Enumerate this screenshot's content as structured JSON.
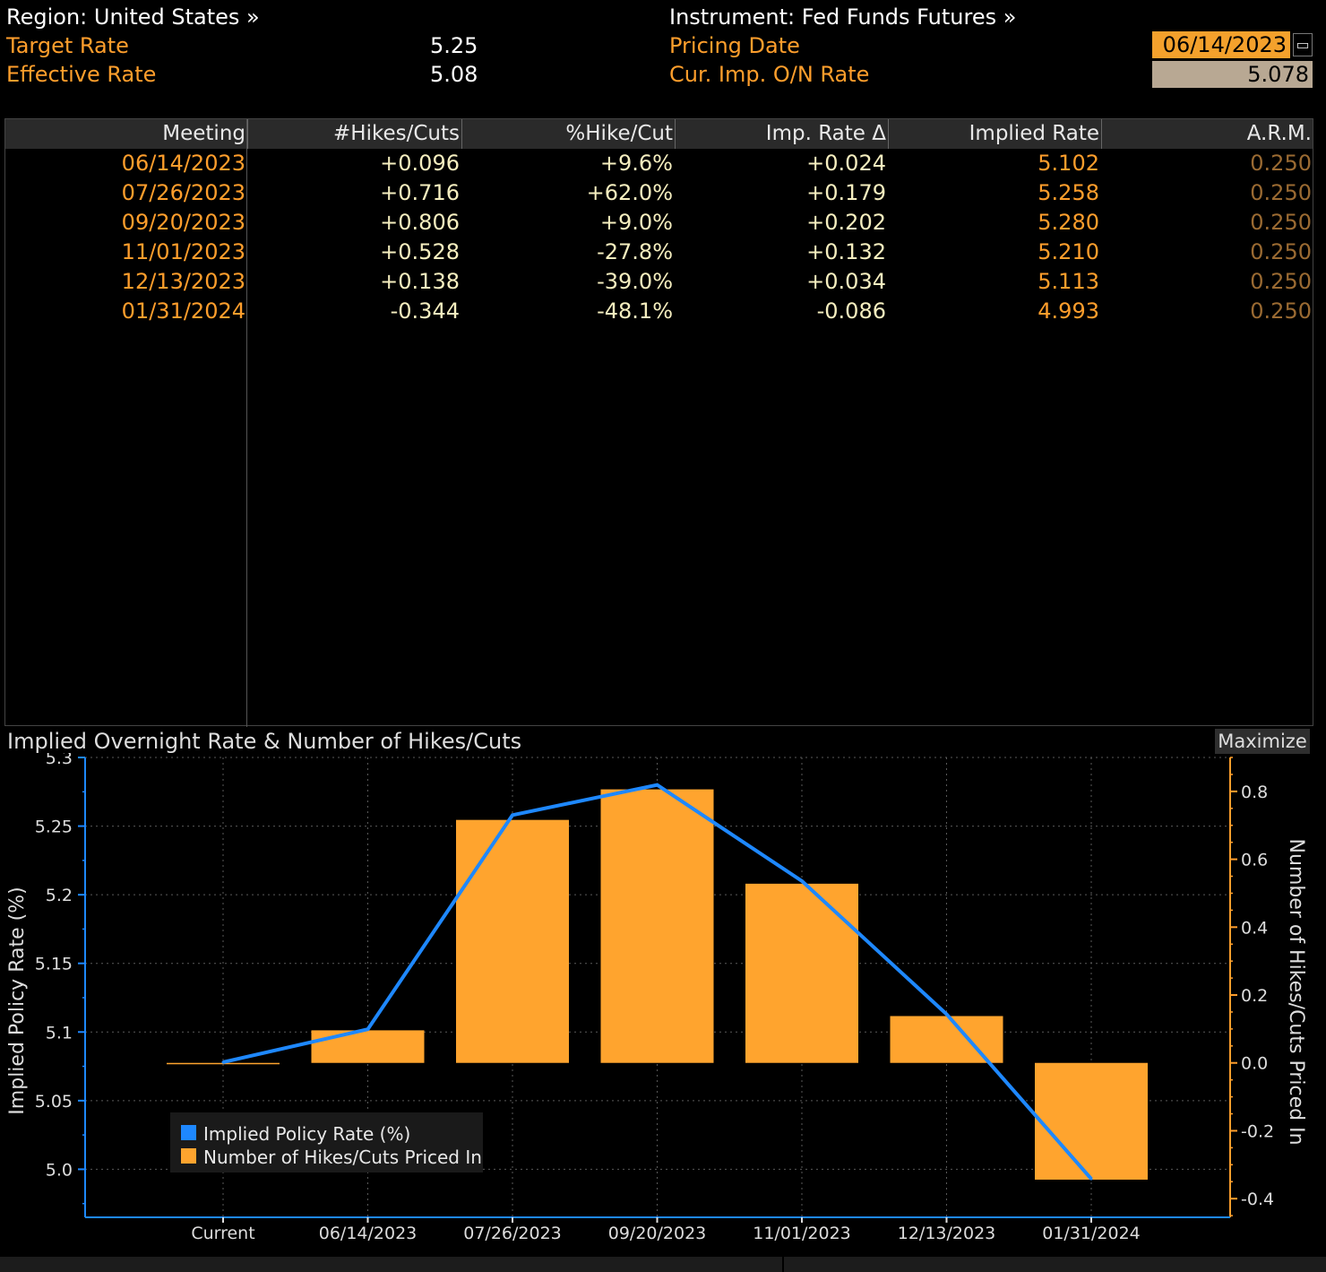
{
  "header": {
    "region_label": "Region: United States »",
    "instrument_label": "Instrument: Fed Funds Futures »",
    "target_rate_label": "Target Rate",
    "target_rate_value": "5.25",
    "effective_rate_label": "Effective Rate",
    "effective_rate_value": "5.08",
    "pricing_date_label": "Pricing Date",
    "pricing_date_value": "06/14/2023",
    "cur_imp_label": "Cur. Imp. O/N Rate",
    "cur_imp_value": "5.078"
  },
  "table": {
    "columns": [
      "Meeting",
      "#Hikes/Cuts",
      "%Hike/Cut",
      "Imp. Rate Δ",
      "Implied Rate",
      "A.R.M."
    ],
    "rows": [
      {
        "meeting": "06/14/2023",
        "hikes": "+0.096",
        "pct": "+9.6%",
        "delta": "+0.024",
        "implied": "5.102",
        "arm": "0.250"
      },
      {
        "meeting": "07/26/2023",
        "hikes": "+0.716",
        "pct": "+62.0%",
        "delta": "+0.179",
        "implied": "5.258",
        "arm": "0.250"
      },
      {
        "meeting": "09/20/2023",
        "hikes": "+0.806",
        "pct": "+9.0%",
        "delta": "+0.202",
        "implied": "5.280",
        "arm": "0.250"
      },
      {
        "meeting": "11/01/2023",
        "hikes": "+0.528",
        "pct": "-27.8%",
        "delta": "+0.132",
        "implied": "5.210",
        "arm": "0.250"
      },
      {
        "meeting": "12/13/2023",
        "hikes": "+0.138",
        "pct": "-39.0%",
        "delta": "+0.034",
        "implied": "5.113",
        "arm": "0.250"
      },
      {
        "meeting": "01/31/2024",
        "hikes": "-0.344",
        "pct": "-48.1%",
        "delta": "-0.086",
        "implied": "4.993",
        "arm": "0.250"
      }
    ]
  },
  "chart_title": "Implied Overnight Rate & Number of Hikes/Cuts",
  "maximize_label": "Maximize",
  "colors": {
    "line": "#1e88ff",
    "bar": "#ffa42e",
    "orange_text": "#ff9e2c"
  },
  "chart_data": {
    "type": "bar",
    "categories": [
      "Current",
      "06/14/2023",
      "07/26/2023",
      "09/20/2023",
      "11/01/2023",
      "12/13/2023",
      "01/31/2024"
    ],
    "series": [
      {
        "name": "Implied Policy Rate (%)",
        "type": "line",
        "axis": "left",
        "values": [
          5.078,
          5.102,
          5.258,
          5.28,
          5.21,
          5.113,
          4.993
        ]
      },
      {
        "name": "Number of Hikes/Cuts Priced In",
        "type": "bar",
        "axis": "right",
        "values": [
          0,
          0.096,
          0.716,
          0.806,
          0.528,
          0.138,
          -0.344
        ]
      }
    ],
    "ylabel": "Implied Policy Rate (%)",
    "y2label": "Number of Hikes/Cuts Priced In",
    "ylim": [
      4.965,
      5.3
    ],
    "y2lim": [
      -0.455,
      0.9
    ],
    "yticks": [
      "5.3",
      "5.25",
      "5.2",
      "5.15",
      "5.1",
      "5.05",
      "5.0"
    ],
    "y2ticks": [
      "0.8",
      "0.6",
      "0.4",
      "0.2",
      "0.0",
      "-0.2",
      "-0.4"
    ],
    "legend_position": "bottom-left",
    "grid": true
  }
}
